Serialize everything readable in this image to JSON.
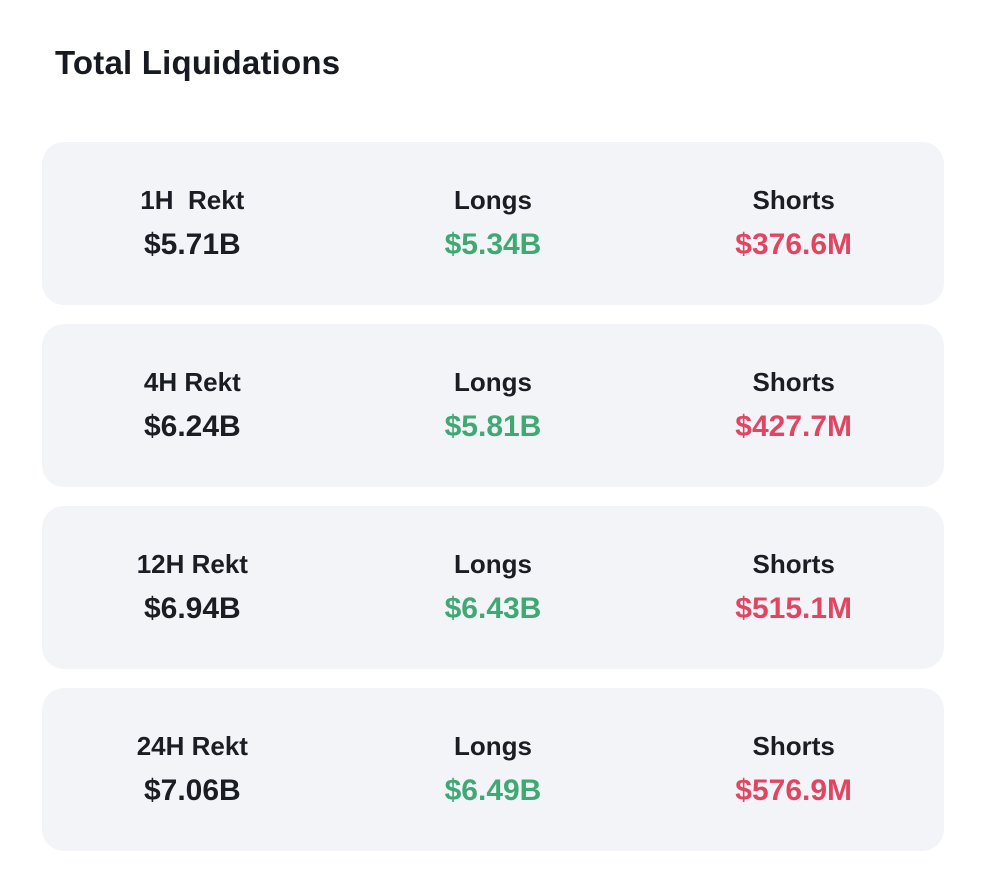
{
  "page": {
    "title": "Total Liquidations"
  },
  "colors": {
    "longs_green": "#3fa873",
    "shorts_red": "#e04662",
    "card_background": "#f2f4f8",
    "text_dark": "#1b1d24"
  },
  "rows": [
    {
      "period_label": "1H  Rekt",
      "total": "$5.71B",
      "longs_label": "Longs",
      "longs": "$5.34B",
      "shorts_label": "Shorts",
      "shorts": "$376.6M"
    },
    {
      "period_label": "4H Rekt",
      "total": "$6.24B",
      "longs_label": "Longs",
      "longs": "$5.81B",
      "shorts_label": "Shorts",
      "shorts": "$427.7M"
    },
    {
      "period_label": "12H Rekt",
      "total": "$6.94B",
      "longs_label": "Longs",
      "longs": "$6.43B",
      "shorts_label": "Shorts",
      "shorts": "$515.1M"
    },
    {
      "period_label": "24H Rekt",
      "total": "$7.06B",
      "longs_label": "Longs",
      "longs": "$6.49B",
      "shorts_label": "Shorts",
      "shorts": "$576.9M"
    }
  ]
}
